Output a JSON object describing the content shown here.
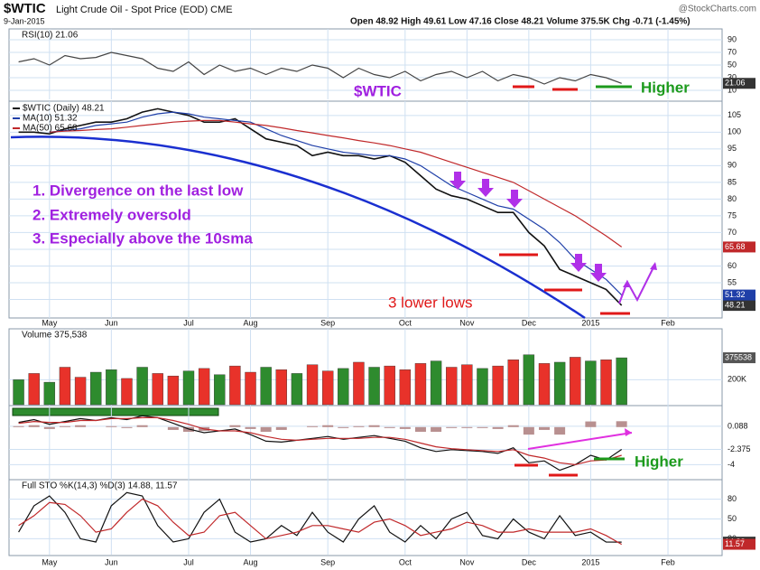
{
  "header": {
    "title": "$WTIC",
    "subtitle": "Light Crude Oil - Spot Price (EOD) CME",
    "date": "9-Jan-2015",
    "quote": "Open 48.92 High 49.61 Low 47.16 Close 48.21 Volume 375.5K Chg -0.71 (-1.45%)",
    "credit": "@StockCharts.com"
  },
  "annotations": [
    "$WTIC",
    "Higher",
    "1. Divergence on the last low",
    "2. Extremely oversold",
    "3. Especially above the 10sma",
    "3 lower lows",
    "Higher"
  ],
  "chart_data": [
    {
      "type": "line",
      "title": "RSI(10) 21.06",
      "ylim": [
        0,
        100
      ],
      "yticks": [
        10,
        30,
        50,
        70,
        90
      ],
      "grid": true,
      "series": [
        {
          "color": "#444444",
          "values": [
            55,
            60,
            50,
            65,
            60,
            62,
            70,
            65,
            60,
            45,
            40,
            55,
            35,
            50,
            40,
            45,
            35,
            45,
            40,
            50,
            45,
            30,
            45,
            35,
            30,
            40,
            25,
            35,
            40,
            30,
            40,
            25,
            35,
            30,
            20,
            30,
            25,
            35,
            30,
            21.06,
            null,
            null,
            null,
            null,
            null,
            null
          ]
        }
      ]
    },
    {
      "type": "line",
      "ylim": [
        45,
        109
      ],
      "yticks": [
        50,
        55,
        60,
        65,
        70,
        75,
        80,
        85,
        90,
        95,
        100,
        105
      ],
      "grid": true,
      "categories": [
        null,
        null,
        "May",
        null,
        null,
        null,
        "Jun",
        null,
        null,
        null,
        null,
        "Jul",
        null,
        null,
        null,
        "Aug",
        null,
        null,
        null,
        null,
        "Sep",
        null,
        null,
        null,
        null,
        "Oct",
        null,
        null,
        null,
        "Nov",
        null,
        null,
        null,
        "Dec",
        null,
        null,
        null,
        "2015",
        null,
        null,
        null,
        null,
        "Feb",
        null,
        null,
        null
      ],
      "series": [
        {
          "name": "$WTIC (Daily) 48.21",
          "color": "#111111",
          "values": [
            100,
            100,
            99.5,
            101,
            102,
            103,
            103,
            104,
            106,
            107,
            106,
            105,
            103,
            103,
            104,
            101,
            98,
            97,
            96,
            93,
            94,
            93,
            93,
            92,
            93,
            91,
            87,
            83,
            81,
            80,
            78,
            76,
            76,
            70,
            66,
            59,
            57,
            55,
            53,
            48.21,
            null,
            null,
            null,
            null,
            null,
            null
          ]
        },
        {
          "name": "MA(10) 51.32",
          "color": "#1f3fa8",
          "values": [
            null,
            null,
            100,
            100.5,
            101,
            102,
            102.5,
            103,
            104.5,
            105.5,
            106,
            105.5,
            104.5,
            104,
            103.5,
            103,
            101,
            99,
            97.5,
            96,
            95,
            94,
            93.5,
            93,
            93,
            92,
            90,
            87,
            84,
            82,
            80,
            78,
            77,
            74,
            71,
            67,
            62,
            59,
            56,
            51.32,
            null,
            null,
            null,
            null,
            null,
            null
          ]
        },
        {
          "name": "MA(50) 65.68",
          "color": "#c0282a",
          "values": [
            null,
            null,
            100,
            100.3,
            100.5,
            100.8,
            101,
            101.5,
            102,
            102.5,
            103,
            103.3,
            103.5,
            103.5,
            103,
            102.5,
            102,
            101.3,
            100.5,
            99.8,
            99,
            98.3,
            97.5,
            96.8,
            96,
            95,
            94,
            92.5,
            91,
            89.5,
            88,
            86.5,
            85,
            82.5,
            80,
            77.5,
            75,
            72,
            69,
            65.68,
            null,
            null,
            null,
            null,
            null,
            null
          ]
        }
      ]
    },
    {
      "type": "bar",
      "title": "Volume 375,538",
      "ylim": [
        0,
        600000
      ],
      "yticks": [
        {
          "value": 200000,
          "label": "200K"
        }
      ],
      "grid": true,
      "values": [
        200000,
        250000,
        180000,
        300000,
        220000,
        260000,
        280000,
        210000,
        300000,
        250000,
        230000,
        270000,
        290000,
        240000,
        310000,
        260000,
        300000,
        280000,
        250000,
        320000,
        270000,
        290000,
        340000,
        300000,
        310000,
        280000,
        330000,
        350000,
        300000,
        320000,
        290000,
        310000,
        360000,
        400000,
        330000,
        340000,
        380000,
        350000,
        360000,
        375538,
        null,
        null,
        null,
        null,
        null,
        null
      ],
      "colors": [
        "#2e8b2e",
        "#e8322a",
        "#2e8b2e",
        "#e8322a",
        "#e8322a",
        "#2e8b2e",
        "#2e8b2e",
        "#e8322a",
        "#2e8b2e",
        "#e8322a",
        "#e8322a",
        "#2e8b2e",
        "#e8322a",
        "#2e8b2e",
        "#e8322a",
        "#e8322a",
        "#2e8b2e",
        "#e8322a",
        "#2e8b2e",
        "#e8322a",
        "#e8322a",
        "#2e8b2e",
        "#e8322a",
        "#2e8b2e",
        "#e8322a",
        "#e8322a",
        "#e8322a",
        "#2e8b2e",
        "#e8322a",
        "#e8322a",
        "#2e8b2e",
        "#e8322a",
        "#e8322a",
        "#2e8b2e",
        "#e8322a",
        "#2e8b2e",
        "#e8322a",
        "#2e8b2e",
        "#e8322a",
        "#2e8b2e",
        null,
        null,
        null,
        null,
        null,
        null
      ]
    },
    {
      "type": "line",
      "ylim": [
        -5.5,
        2
      ],
      "yticks": [
        0.088,
        -2.375,
        -4
      ],
      "grid": true,
      "histogram": {
        "color": "#b89090",
        "values": [
          0.1,
          0.2,
          -0.2,
          0.1,
          0.2,
          0,
          0.1,
          -0.1,
          0.2,
          0,
          -0.3,
          -0.5,
          -0.4,
          0,
          0.2,
          -0.2,
          -0.5,
          -0.3,
          0,
          0.1,
          0.2,
          -0.1,
          0.1,
          0.2,
          -0.1,
          -0.2,
          -0.5,
          -0.5,
          -0.1,
          -0.1,
          -0.1,
          -0.2,
          0.2,
          -0.8,
          -0.3,
          -0.8,
          0,
          0.6,
          0,
          0.625,
          null,
          null,
          null,
          null,
          null,
          null
        ]
      },
      "series": [
        {
          "color": "#111111",
          "values": [
            0.5,
            0.8,
            0.3,
            0.6,
            0.9,
            0.7,
            1.0,
            0.8,
            1.2,
            1.0,
            0.4,
            -0.2,
            -0.6,
            -0.4,
            -0.2,
            -0.8,
            -1.5,
            -1.6,
            -1.4,
            -1.2,
            -1.0,
            -1.3,
            -1.1,
            -0.9,
            -1.2,
            -1.5,
            -2.2,
            -2.6,
            -2.4,
            -2.5,
            -2.6,
            -2.8,
            -2.2,
            -3.8,
            -3.6,
            -4.6,
            -4.0,
            -3.0,
            -3.5,
            -2.375,
            null,
            null,
            null,
            null,
            null,
            null
          ]
        },
        {
          "color": "#c0282a",
          "values": [
            0.4,
            0.6,
            0.5,
            0.5,
            0.7,
            0.7,
            0.9,
            0.9,
            1.0,
            1.0,
            0.7,
            0.3,
            -0.2,
            -0.4,
            -0.4,
            -0.6,
            -1.0,
            -1.3,
            -1.4,
            -1.3,
            -1.2,
            -1.2,
            -1.2,
            -1.1,
            -1.1,
            -1.3,
            -1.7,
            -2.1,
            -2.3,
            -2.4,
            -2.5,
            -2.6,
            -2.4,
            -3.0,
            -3.3,
            -3.8,
            -4.0,
            -3.6,
            -3.5,
            -3.0,
            null,
            null,
            null,
            null,
            null,
            null
          ]
        }
      ]
    },
    {
      "type": "line",
      "title": "Full STO %K(14,3) %D(3) 14.88, 11.57",
      "ylim": [
        0,
        100
      ],
      "yticks": [
        20,
        50,
        80
      ],
      "grid": true,
      "series": [
        {
          "color": "#111111",
          "values": [
            30,
            70,
            85,
            60,
            20,
            15,
            70,
            90,
            85,
            40,
            15,
            20,
            60,
            80,
            30,
            15,
            20,
            40,
            25,
            60,
            30,
            15,
            50,
            70,
            30,
            15,
            40,
            20,
            50,
            60,
            25,
            20,
            50,
            30,
            20,
            55,
            25,
            30,
            15,
            14.88,
            null,
            null,
            null,
            null,
            null,
            null
          ]
        },
        {
          "color": "#c0282a",
          "values": [
            40,
            55,
            75,
            72,
            55,
            30,
            35,
            60,
            80,
            70,
            45,
            25,
            30,
            55,
            60,
            40,
            20,
            25,
            30,
            40,
            40,
            35,
            30,
            45,
            50,
            40,
            25,
            30,
            35,
            45,
            40,
            30,
            30,
            35,
            30,
            30,
            30,
            35,
            25,
            11.57,
            null,
            null,
            null,
            null,
            null,
            null
          ]
        }
      ]
    }
  ]
}
